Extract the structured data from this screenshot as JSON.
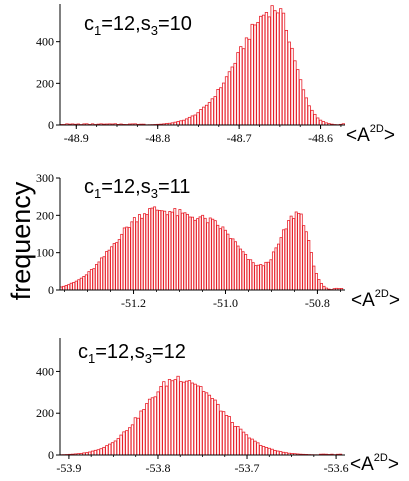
{
  "figure": {
    "ylabel": "frequency",
    "bar_color": "#e8202a",
    "axis_color": "#000000"
  },
  "chart_data": [
    {
      "type": "bar",
      "label": {
        "c_sub": "1",
        "c_val": "12",
        "s_sub": "3",
        "s_val": "10"
      },
      "xlabel": {
        "base": "<A",
        "sup": "2D",
        "close": ">"
      },
      "xlim": [
        -48.92,
        -48.57
      ],
      "ylim": [
        0,
        600
      ],
      "xticks": [
        -48.9,
        -48.8,
        -48.7,
        -48.6
      ],
      "xtick_labels": [
        "-48.9",
        "-48.8",
        "-48.7",
        "-48.6"
      ],
      "yticks": [
        0,
        200,
        400
      ],
      "ytick_labels": [
        "0",
        "200",
        "400"
      ],
      "bin_width": 0.0035,
      "peaks": [
        {
          "center": -48.655,
          "amp": 560,
          "wl": 0.045,
          "wr": 0.022
        }
      ],
      "base": 4
    },
    {
      "type": "bar",
      "label": {
        "c_sub": "1",
        "c_val": "12",
        "s_sub": "3",
        "s_val": "11"
      },
      "xlabel": {
        "base": "<A",
        "sup": "2D",
        "close": ">"
      },
      "xlim": [
        -51.36,
        -50.74
      ],
      "ylim": [
        0,
        300
      ],
      "xticks": [
        -51.2,
        -51.0,
        -50.8
      ],
      "xtick_labels": [
        "-51.2",
        "-51.0",
        "-50.8"
      ],
      "yticks": [
        0,
        100,
        200,
        300
      ],
      "ytick_labels": [
        "0",
        "100",
        "200",
        "300"
      ],
      "bin_width": 0.0055,
      "peaks": [
        {
          "center": -51.17,
          "amp": 195,
          "wl": 0.075,
          "wr": 0.075
        },
        {
          "center": -51.02,
          "amp": 150,
          "wl": 0.07,
          "wr": 0.06
        },
        {
          "center": -50.84,
          "amp": 205,
          "wl": 0.04,
          "wr": 0.022
        }
      ],
      "base": 3
    },
    {
      "type": "bar",
      "label": {
        "c_sub": "1",
        "c_val": "12",
        "s_sub": "3",
        "s_val": "12"
      },
      "xlabel": {
        "base": "<A",
        "sup": "2D",
        "close": ">"
      },
      "xlim": [
        -53.91,
        -53.59
      ],
      "ylim": [
        0,
        560
      ],
      "xticks": [
        -53.9,
        -53.8,
        -53.7,
        -53.6
      ],
      "xtick_labels": [
        "-53.9",
        "-53.8",
        "-53.7",
        "-53.6"
      ],
      "yticks": [
        0,
        200,
        400
      ],
      "ytick_labels": [
        "0",
        "200",
        "400"
      ],
      "bin_width": 0.0032,
      "peaks": [
        {
          "center": -53.775,
          "amp": 370,
          "wl": 0.04,
          "wr": 0.045
        }
      ],
      "base": 3
    }
  ]
}
